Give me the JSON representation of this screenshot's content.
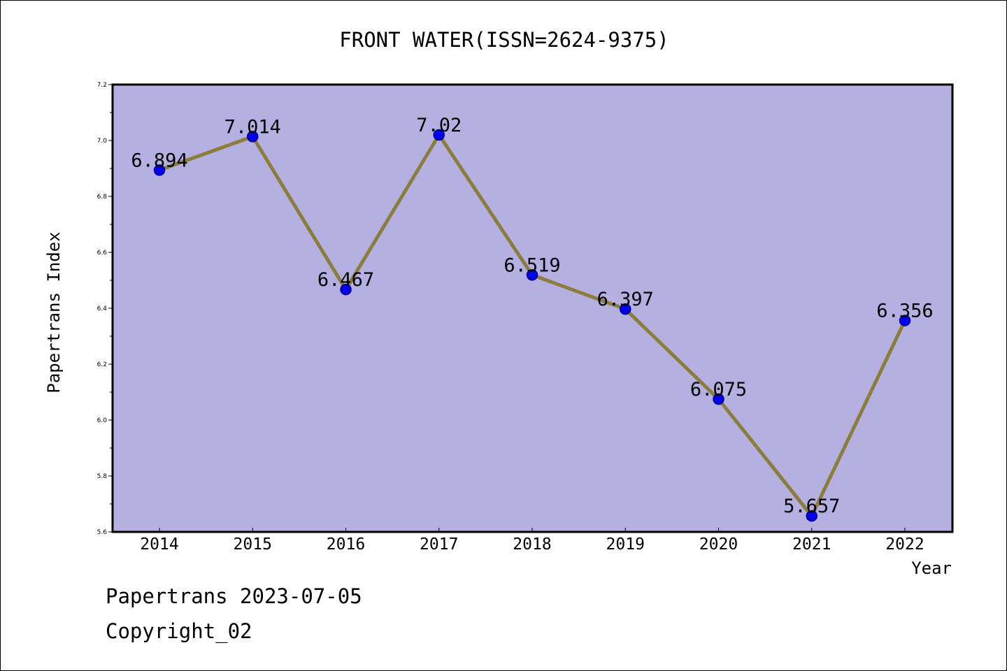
{
  "footer": {
    "line1": "Papertrans 2023-07-05",
    "line2": "Copyright_02"
  },
  "chart_data": {
    "type": "line",
    "title": "FRONT WATER(ISSN=2624-9375)",
    "xlabel": "Year",
    "ylabel": "Papertrans Index",
    "categories": [
      "2014",
      "2015",
      "2016",
      "2017",
      "2018",
      "2019",
      "2020",
      "2021",
      "2022"
    ],
    "series": [
      {
        "values": [
          6.894,
          7.014,
          6.467,
          7.02,
          6.519,
          6.397,
          6.075,
          5.657,
          6.356
        ],
        "data_labels": [
          "6.894",
          "7.014",
          "6.467",
          "7.02",
          "6.519",
          "6.397",
          "6.075",
          "5.657",
          "6.356"
        ]
      }
    ],
    "ylim": [
      5.6,
      7.2
    ],
    "yticks": [
      "5.6",
      "5.8",
      "6.0",
      "6.2",
      "6.4",
      "6.6",
      "6.8",
      "7.0",
      "7.2"
    ],
    "grid": false,
    "legend": "none",
    "colors": {
      "plot_background": "#b5b0e2",
      "line": "#8b7d3a",
      "marker": "#0000ee",
      "marker_edge": "#00008b"
    }
  }
}
